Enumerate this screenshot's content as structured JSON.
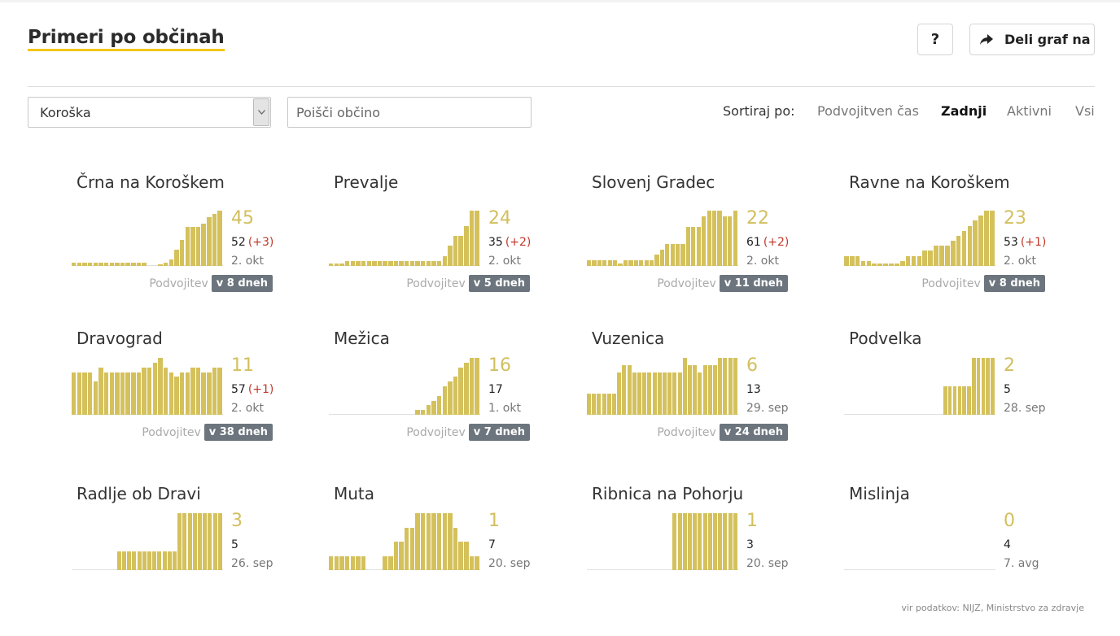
{
  "header": {
    "title": "Primeri po občinah",
    "help_label": "?",
    "share_label": "Deli graf na"
  },
  "filters": {
    "region_value": "Koroška",
    "search_placeholder": "Poišči občino"
  },
  "sort": {
    "label": "Sortiraj po:",
    "options": [
      "Podvojitven čas",
      "Zadnji",
      "Aktivni",
      "Vsi"
    ],
    "active": "Zadnji"
  },
  "doubling_label": "Podvojitev",
  "source": "vir podatkov: NIJZ, Ministrstvo za zdravje",
  "colors": {
    "accent": "#f5c518",
    "bar": "#d4c15c",
    "badge": "#6c757d",
    "delta": "#c0392b"
  },
  "municipalities": [
    {
      "name": "Črna na Koroškem",
      "active": "45",
      "total": "52",
      "delta": "(+3)",
      "date": "2. okt",
      "doubling": "v 8 dneh",
      "series": [
        1,
        1,
        1,
        1,
        1,
        1,
        1,
        1,
        1,
        1,
        1,
        1,
        1,
        1,
        0,
        0,
        0.5,
        1,
        2,
        5,
        8,
        12,
        12,
        12,
        13,
        15,
        16,
        17
      ]
    },
    {
      "name": "Prevalje",
      "active": "24",
      "total": "35",
      "delta": "(+2)",
      "date": "2. okt",
      "doubling": "v 5 dneh",
      "series": [
        0.5,
        0.5,
        0.5,
        1,
        1,
        1,
        1,
        1,
        1,
        1,
        1,
        1,
        1,
        1,
        1,
        1,
        1,
        1,
        1,
        1,
        1,
        2,
        4,
        6,
        6,
        8,
        11,
        11
      ]
    },
    {
      "name": "Slovenj Gradec",
      "active": "22",
      "total": "61",
      "delta": "(+2)",
      "date": "2. okt",
      "doubling": "v 11 dneh",
      "series": [
        1,
        1,
        1,
        1,
        1,
        1,
        0.5,
        1,
        1,
        1,
        1,
        1,
        1,
        2,
        3,
        4,
        4,
        4,
        4,
        7,
        7,
        7,
        9,
        10,
        10,
        10,
        9,
        9,
        10
      ]
    },
    {
      "name": "Ravne na Koroškem",
      "active": "23",
      "total": "53",
      "delta": "(+1)",
      "date": "2. okt",
      "doubling": "v 8 dneh",
      "series": [
        2,
        2,
        2,
        1,
        1,
        0.5,
        0.5,
        0.5,
        0.5,
        0.5,
        1,
        2,
        2,
        2,
        3,
        3,
        4,
        4,
        4,
        5,
        6,
        7,
        8,
        9,
        10,
        11,
        11
      ]
    },
    {
      "name": "Dravograd",
      "active": "11",
      "total": "57",
      "delta": "(+1)",
      "date": "2. okt",
      "doubling": "v 38 dneh",
      "series": [
        9,
        9,
        9,
        9,
        7,
        10,
        9,
        9,
        9,
        9,
        9,
        9,
        9,
        10,
        10,
        11,
        12,
        10,
        9,
        8,
        9,
        9,
        10,
        10,
        9,
        9,
        10,
        10
      ]
    },
    {
      "name": "Mežica",
      "active": "16",
      "total": "17",
      "delta": "",
      "date": "1. okt",
      "doubling": "v 7 dneh",
      "series": [
        0,
        0,
        0,
        0,
        0,
        0,
        0,
        0,
        0,
        0,
        0,
        0,
        0,
        0,
        0,
        0,
        1,
        1,
        2,
        3,
        4,
        6,
        7,
        8,
        10,
        11,
        12,
        12
      ]
    },
    {
      "name": "Vuzenica",
      "active": "6",
      "total": "13",
      "delta": "",
      "date": "29. sep",
      "doubling": "v 24 dneh",
      "series": [
        3,
        3,
        3,
        3,
        3,
        3,
        6,
        7,
        7,
        6,
        6,
        6,
        6,
        6,
        6,
        6,
        6,
        6,
        6,
        8,
        7,
        7,
        6,
        7,
        7,
        7,
        8,
        8,
        8,
        8
      ]
    },
    {
      "name": "Podvelka",
      "active": "2",
      "total": "5",
      "delta": "",
      "date": "28. sep",
      "doubling": "",
      "series": [
        0,
        0,
        0,
        0,
        0,
        0,
        0,
        0,
        0,
        0,
        0,
        0,
        0,
        0,
        0,
        0,
        0,
        0,
        0,
        0,
        0,
        1,
        1,
        1,
        1,
        1,
        1,
        2,
        2,
        2,
        2,
        2
      ]
    },
    {
      "name": "Radlje ob Dravi",
      "active": "3",
      "total": "5",
      "delta": "",
      "date": "26. sep",
      "doubling": "",
      "series": [
        0,
        0,
        0,
        0,
        0,
        0,
        0,
        0,
        0,
        1,
        1,
        1,
        1,
        1,
        1,
        1,
        1,
        1,
        1,
        1,
        1,
        3,
        3,
        3,
        3,
        3,
        3,
        3,
        3,
        3
      ]
    },
    {
      "name": "Muta",
      "active": "1",
      "total": "7",
      "delta": "",
      "date": "20. sep",
      "doubling": "",
      "series": [
        1,
        1,
        1,
        1,
        1,
        1,
        1,
        0,
        0,
        0,
        1,
        1,
        2,
        2,
        3,
        3,
        4,
        4,
        4,
        4,
        4,
        4,
        4,
        3,
        2,
        2,
        1,
        1
      ]
    },
    {
      "name": "Ribnica na Pohorju",
      "active": "1",
      "total": "3",
      "delta": "",
      "date": "20. sep",
      "doubling": "",
      "series": [
        0,
        0,
        0,
        0,
        0,
        0,
        0,
        0,
        0,
        0,
        0,
        0,
        0,
        0,
        0,
        0,
        0,
        1,
        1,
        1,
        1,
        1,
        1,
        1,
        1,
        1,
        1,
        1,
        1,
        1
      ]
    },
    {
      "name": "Mislinja",
      "active": "0",
      "total": "4",
      "delta": "",
      "date": "7. avg",
      "doubling": "",
      "series": []
    }
  ]
}
